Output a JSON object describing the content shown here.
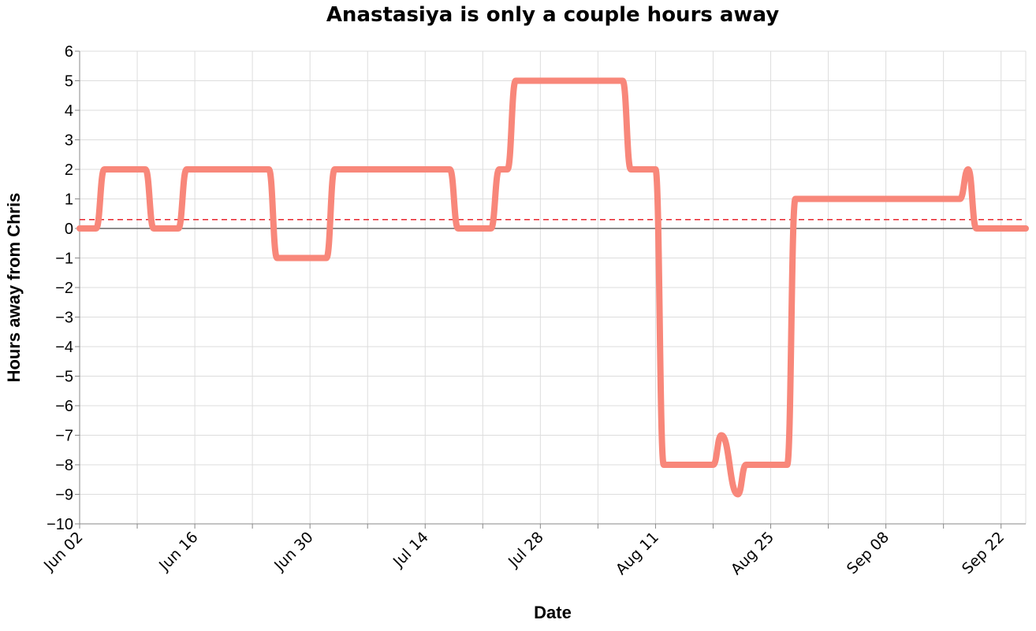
{
  "chart_data": {
    "type": "line",
    "title": "Anastasiya is only a couple hours away",
    "xlabel": "Date",
    "ylabel": "Hours away from Chris",
    "ylim": [
      -10,
      6
    ],
    "y_ticks": [
      6,
      5,
      4,
      3,
      2,
      1,
      0,
      -1,
      -2,
      -3,
      -4,
      -5,
      -6,
      -7,
      -8,
      -9,
      -10
    ],
    "y_tick_labels": [
      "6",
      "5",
      "4",
      "3",
      "2",
      "1",
      "0",
      "−1",
      "−2",
      "−3",
      "−4",
      "−5",
      "−6",
      "−7",
      "−8",
      "−9",
      "−10"
    ],
    "xlim": [
      "2024-06-02",
      "2024-09-25"
    ],
    "x_ticks": [
      "2024-06-02",
      "2024-06-16",
      "2024-06-30",
      "2024-07-14",
      "2024-07-28",
      "2024-08-11",
      "2024-08-25",
      "2024-09-08",
      "2024-09-22"
    ],
    "x_tick_labels": [
      "Jun 02",
      "Jun 16",
      "Jun 30",
      "Jul 14",
      "Jul 28",
      "Aug 11",
      "Aug 25",
      "Sep 08",
      "Sep 22"
    ],
    "x_minor_ticks": [
      "2024-06-09",
      "2024-06-23",
      "2024-07-07",
      "2024-07-21",
      "2024-08-04",
      "2024-08-18",
      "2024-09-01",
      "2024-09-15"
    ],
    "grid": true,
    "line_color": "#f8877a",
    "zero_line_color": "#666666",
    "average_line_color": "#e8262d",
    "average_line_value": 0.3,
    "series": [
      {
        "x": [
          "2024-06-02",
          "2024-06-04",
          "2024-06-05",
          "2024-06-10",
          "2024-06-11",
          "2024-06-14",
          "2024-06-15",
          "2024-06-25",
          "2024-06-26",
          "2024-07-02",
          "2024-07-03",
          "2024-07-17",
          "2024-07-18",
          "2024-07-22",
          "2024-07-23",
          "2024-07-24",
          "2024-07-25",
          "2024-08-07",
          "2024-08-08",
          "2024-08-11",
          "2024-08-12",
          "2024-08-18",
          "2024-08-19",
          "2024-08-21",
          "2024-08-22",
          "2024-08-27",
          "2024-08-28",
          "2024-09-17",
          "2024-09-18",
          "2024-09-19",
          "2024-09-25"
        ],
        "values": [
          0,
          0,
          2,
          2,
          0,
          0,
          2,
          2,
          -1,
          -1,
          2,
          2,
          0,
          0,
          2,
          2,
          5,
          5,
          2,
          2,
          -8,
          -8,
          -7,
          -9,
          -8,
          -8,
          1,
          1,
          2,
          0,
          0
        ]
      }
    ]
  }
}
